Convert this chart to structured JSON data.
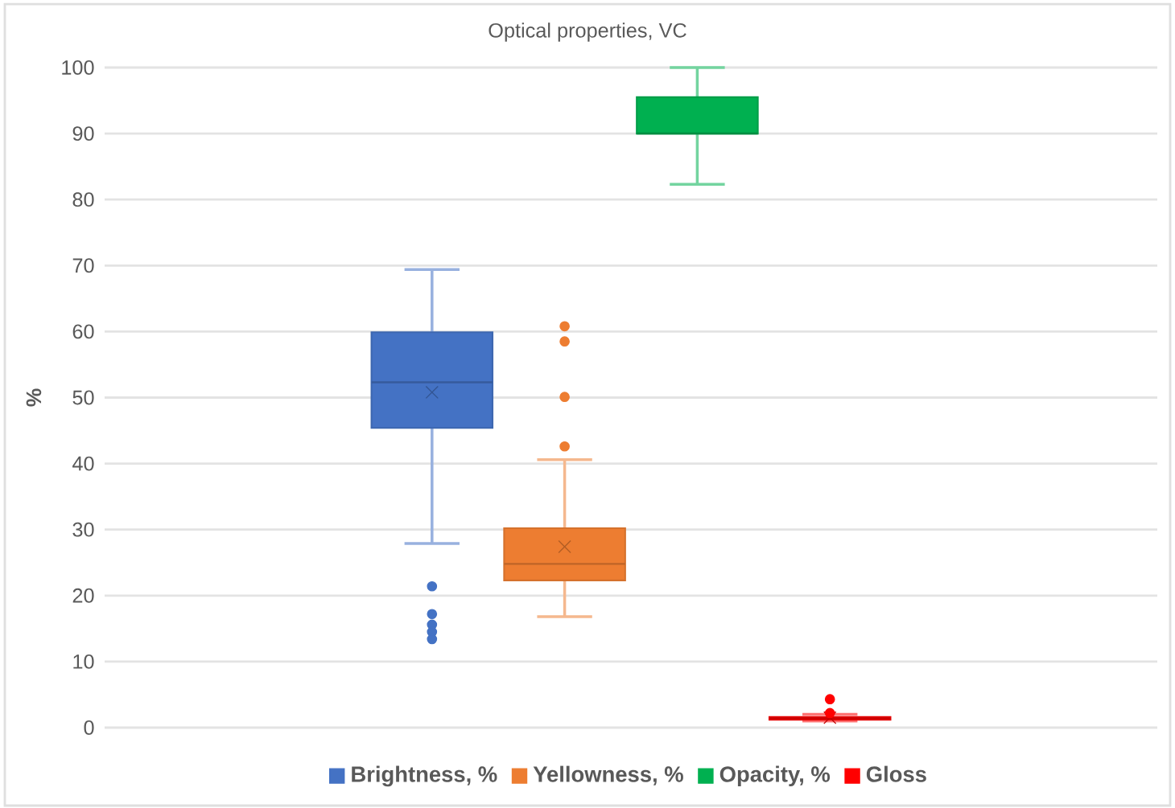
{
  "chart_data": {
    "type": "box",
    "title": "Optical properties, VC",
    "ylabel": "%",
    "categories": [
      null
    ],
    "ylim": [
      0,
      100
    ],
    "yticks": [
      0,
      10,
      20,
      30,
      40,
      50,
      60,
      70,
      80,
      90,
      100
    ],
    "grid": "y",
    "legend": "bottom",
    "marker": "circle",
    "series": [
      {
        "name": "Brightness, %",
        "color": "#4472c4",
        "boxes": [
          {
            "low": 27.9,
            "q1": 45.4,
            "median": 52.3,
            "q3": 59.9,
            "high": 69.4,
            "mean": 50.8,
            "outliers": [
              21.4,
              17.2,
              15.6,
              14.5,
              13.4
            ]
          }
        ]
      },
      {
        "name": "Yellowness, %",
        "color": "#ed7d31",
        "boxes": [
          {
            "low": 16.8,
            "q1": 22.3,
            "median": 24.8,
            "q3": 30.2,
            "high": 40.6,
            "mean": 27.4,
            "outliers": [
              60.8,
              58.5,
              50.1,
              42.6
            ]
          }
        ]
      },
      {
        "name": "Opacity, %",
        "color": "#00b050",
        "boxes": [
          {
            "low": 82.3,
            "q1": 90,
            "median": 90,
            "q3": 95.5,
            "high": 100
          }
        ]
      },
      {
        "name": "Gloss",
        "color": "#ff0000",
        "boxes": [
          {
            "low": 1.0,
            "q1": 1.2,
            "median": 1.4,
            "q3": 1.6,
            "high": 2.0,
            "mean": 1.5,
            "outliers": [
              4.3,
              2.2
            ]
          }
        ]
      }
    ]
  }
}
